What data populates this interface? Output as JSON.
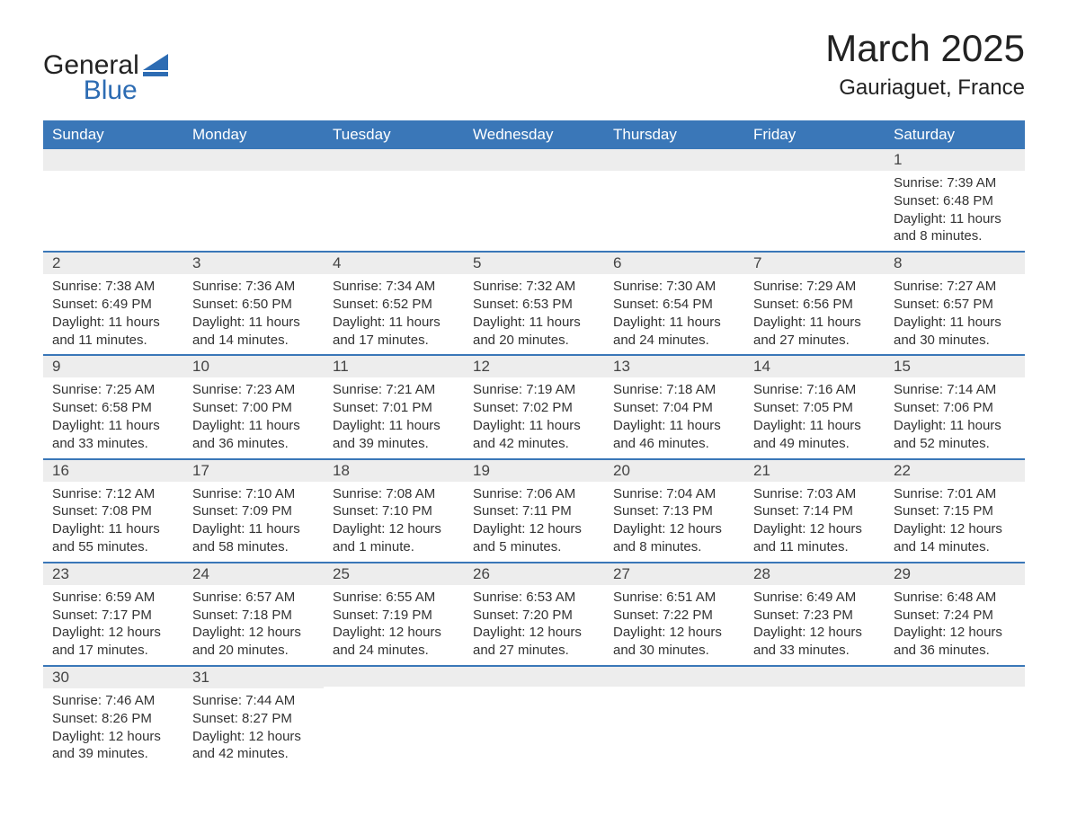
{
  "brand": {
    "name_top": "General",
    "name_bottom": "Blue",
    "accent_color": "#2d6cb3",
    "text_color": "#222222"
  },
  "title": {
    "month": "March 2025",
    "location": "Gauriaguet, France"
  },
  "colors": {
    "header_bg": "#3a77b8",
    "header_text": "#ffffff",
    "daynum_bg": "#ededed",
    "row_border": "#3a77b8",
    "body_text": "#333333",
    "background": "#ffffff"
  },
  "fonts": {
    "title_size_pt": 32,
    "location_size_pt": 18,
    "weekday_size_pt": 13,
    "daynum_size_pt": 13,
    "body_size_pt": 11,
    "family": "Arial"
  },
  "weekdays": [
    "Sunday",
    "Monday",
    "Tuesday",
    "Wednesday",
    "Thursday",
    "Friday",
    "Saturday"
  ],
  "labels": {
    "sunrise": "Sunrise:",
    "sunset": "Sunset:",
    "daylight": "Daylight:"
  },
  "weeks": [
    [
      {
        "day": "",
        "empty": true
      },
      {
        "day": "",
        "empty": true
      },
      {
        "day": "",
        "empty": true
      },
      {
        "day": "",
        "empty": true
      },
      {
        "day": "",
        "empty": true
      },
      {
        "day": "",
        "empty": true
      },
      {
        "day": "1",
        "sunrise": "7:39 AM",
        "sunset": "6:48 PM",
        "daylight": "11 hours and 8 minutes."
      }
    ],
    [
      {
        "day": "2",
        "sunrise": "7:38 AM",
        "sunset": "6:49 PM",
        "daylight": "11 hours and 11 minutes."
      },
      {
        "day": "3",
        "sunrise": "7:36 AM",
        "sunset": "6:50 PM",
        "daylight": "11 hours and 14 minutes."
      },
      {
        "day": "4",
        "sunrise": "7:34 AM",
        "sunset": "6:52 PM",
        "daylight": "11 hours and 17 minutes."
      },
      {
        "day": "5",
        "sunrise": "7:32 AM",
        "sunset": "6:53 PM",
        "daylight": "11 hours and 20 minutes."
      },
      {
        "day": "6",
        "sunrise": "7:30 AM",
        "sunset": "6:54 PM",
        "daylight": "11 hours and 24 minutes."
      },
      {
        "day": "7",
        "sunrise": "7:29 AM",
        "sunset": "6:56 PM",
        "daylight": "11 hours and 27 minutes."
      },
      {
        "day": "8",
        "sunrise": "7:27 AM",
        "sunset": "6:57 PM",
        "daylight": "11 hours and 30 minutes."
      }
    ],
    [
      {
        "day": "9",
        "sunrise": "7:25 AM",
        "sunset": "6:58 PM",
        "daylight": "11 hours and 33 minutes."
      },
      {
        "day": "10",
        "sunrise": "7:23 AM",
        "sunset": "7:00 PM",
        "daylight": "11 hours and 36 minutes."
      },
      {
        "day": "11",
        "sunrise": "7:21 AM",
        "sunset": "7:01 PM",
        "daylight": "11 hours and 39 minutes."
      },
      {
        "day": "12",
        "sunrise": "7:19 AM",
        "sunset": "7:02 PM",
        "daylight": "11 hours and 42 minutes."
      },
      {
        "day": "13",
        "sunrise": "7:18 AM",
        "sunset": "7:04 PM",
        "daylight": "11 hours and 46 minutes."
      },
      {
        "day": "14",
        "sunrise": "7:16 AM",
        "sunset": "7:05 PM",
        "daylight": "11 hours and 49 minutes."
      },
      {
        "day": "15",
        "sunrise": "7:14 AM",
        "sunset": "7:06 PM",
        "daylight": "11 hours and 52 minutes."
      }
    ],
    [
      {
        "day": "16",
        "sunrise": "7:12 AM",
        "sunset": "7:08 PM",
        "daylight": "11 hours and 55 minutes."
      },
      {
        "day": "17",
        "sunrise": "7:10 AM",
        "sunset": "7:09 PM",
        "daylight": "11 hours and 58 minutes."
      },
      {
        "day": "18",
        "sunrise": "7:08 AM",
        "sunset": "7:10 PM",
        "daylight": "12 hours and 1 minute."
      },
      {
        "day": "19",
        "sunrise": "7:06 AM",
        "sunset": "7:11 PM",
        "daylight": "12 hours and 5 minutes."
      },
      {
        "day": "20",
        "sunrise": "7:04 AM",
        "sunset": "7:13 PM",
        "daylight": "12 hours and 8 minutes."
      },
      {
        "day": "21",
        "sunrise": "7:03 AM",
        "sunset": "7:14 PM",
        "daylight": "12 hours and 11 minutes."
      },
      {
        "day": "22",
        "sunrise": "7:01 AM",
        "sunset": "7:15 PM",
        "daylight": "12 hours and 14 minutes."
      }
    ],
    [
      {
        "day": "23",
        "sunrise": "6:59 AM",
        "sunset": "7:17 PM",
        "daylight": "12 hours and 17 minutes."
      },
      {
        "day": "24",
        "sunrise": "6:57 AM",
        "sunset": "7:18 PM",
        "daylight": "12 hours and 20 minutes."
      },
      {
        "day": "25",
        "sunrise": "6:55 AM",
        "sunset": "7:19 PM",
        "daylight": "12 hours and 24 minutes."
      },
      {
        "day": "26",
        "sunrise": "6:53 AM",
        "sunset": "7:20 PM",
        "daylight": "12 hours and 27 minutes."
      },
      {
        "day": "27",
        "sunrise": "6:51 AM",
        "sunset": "7:22 PM",
        "daylight": "12 hours and 30 minutes."
      },
      {
        "day": "28",
        "sunrise": "6:49 AM",
        "sunset": "7:23 PM",
        "daylight": "12 hours and 33 minutes."
      },
      {
        "day": "29",
        "sunrise": "6:48 AM",
        "sunset": "7:24 PM",
        "daylight": "12 hours and 36 minutes."
      }
    ],
    [
      {
        "day": "30",
        "sunrise": "7:46 AM",
        "sunset": "8:26 PM",
        "daylight": "12 hours and 39 minutes."
      },
      {
        "day": "31",
        "sunrise": "7:44 AM",
        "sunset": "8:27 PM",
        "daylight": "12 hours and 42 minutes."
      },
      {
        "day": "",
        "empty": true
      },
      {
        "day": "",
        "empty": true
      },
      {
        "day": "",
        "empty": true
      },
      {
        "day": "",
        "empty": true
      },
      {
        "day": "",
        "empty": true
      }
    ]
  ]
}
